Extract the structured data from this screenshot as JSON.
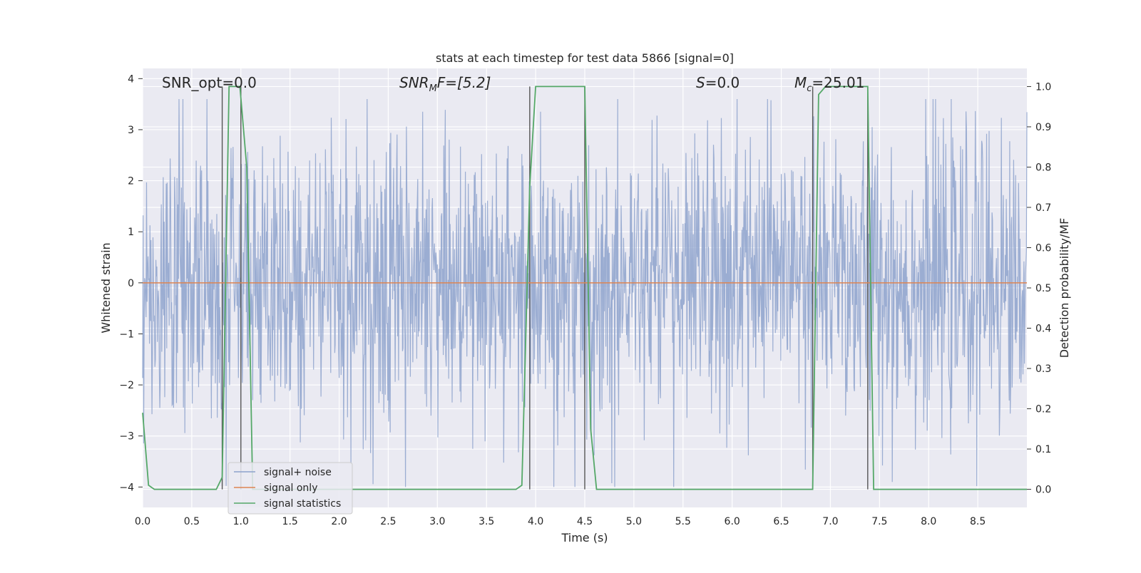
{
  "chart_data": {
    "type": "line",
    "title": "stats at each timestep for test data 5866 [signal=0]",
    "xlabel": "Time (s)",
    "ylabel": "Whitened strain",
    "ylabel_right": "Detection probability/MF",
    "xlim": [
      0.0,
      9.0
    ],
    "ylim": [
      -4.4,
      4.2
    ],
    "ylim_right": [
      -0.045,
      1.045
    ],
    "x_ticks": [
      "0.0",
      "0.5",
      "1.0",
      "1.5",
      "2.0",
      "2.5",
      "3.0",
      "3.5",
      "4.0",
      "4.5",
      "5.0",
      "5.5",
      "6.0",
      "6.5",
      "7.0",
      "7.5",
      "8.0",
      "8.5"
    ],
    "y_ticks": [
      "4",
      "3",
      "2",
      "1",
      "0",
      "−1",
      "−2",
      "−3",
      "−4"
    ],
    "y_ticks_right": [
      "1.0",
      "0.9",
      "0.8",
      "0.7",
      "0.6",
      "0.5",
      "0.4",
      "0.3",
      "0.2",
      "0.1",
      "0.0"
    ],
    "grid": true,
    "legend_position": "lower-left",
    "annotations": {
      "snr_opt": "SNR_opt=0.0",
      "snr_mf_base": "SNR",
      "snr_mf_sub": "M",
      "snr_mf_rest": "F=[5.2]",
      "s_var": "S",
      "s_rest": "=0.0",
      "mc_var": "M",
      "mc_sub": "c",
      "mc_rest": "=25.01"
    },
    "series": [
      {
        "name": "signal+ noise",
        "color": "#8da2cc",
        "description_values": {
          "typical_amplitude": 1.5,
          "max": 3.6,
          "min": -4.0
        }
      },
      {
        "name": "signal only",
        "color": "#dd8452",
        "x": [
          0.0,
          9.0
        ],
        "y": [
          0.0,
          0.0
        ]
      },
      {
        "name": "signal statistics",
        "color": "#55a868",
        "axis": "right",
        "x": [
          0.0,
          0.06,
          0.12,
          0.75,
          0.81,
          0.88,
          0.99,
          1.06,
          1.12,
          3.8,
          3.86,
          3.94,
          4.0,
          4.5,
          4.56,
          4.62,
          6.82,
          6.88,
          6.95,
          7.38,
          7.44,
          9.0
        ],
        "y": [
          0.19,
          0.01,
          0.0,
          0.0,
          0.03,
          1.0,
          1.0,
          0.8,
          0.0,
          0.0,
          0.01,
          0.75,
          1.0,
          1.0,
          0.15,
          0.0,
          0.0,
          0.98,
          1.0,
          1.0,
          0.0,
          0.0
        ]
      }
    ],
    "vertical_markers": [
      0.81,
      1.0,
      3.94,
      4.5,
      6.82,
      7.38
    ]
  }
}
